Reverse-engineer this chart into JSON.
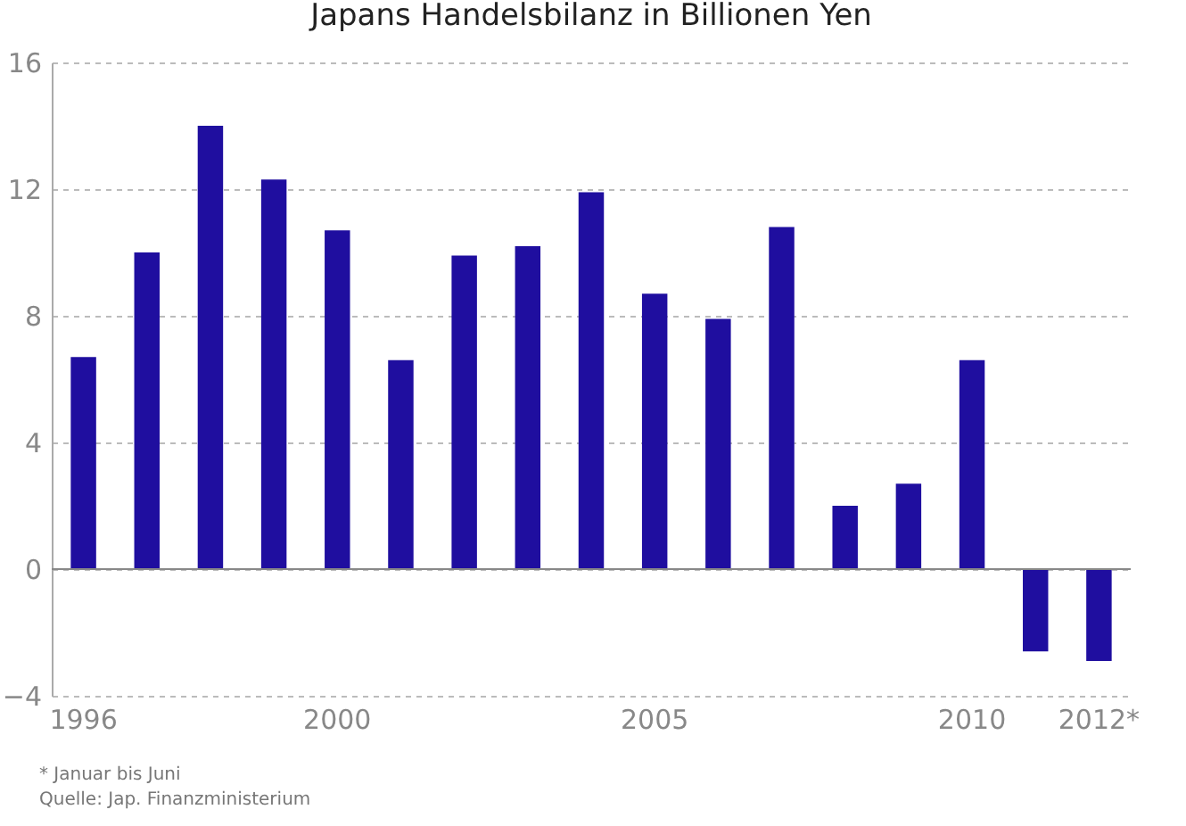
{
  "chart_data": {
    "type": "bar",
    "title": "Japans Handelsbilanz in Billionen Yen",
    "categories": [
      "1996",
      null,
      null,
      null,
      "2000",
      null,
      null,
      null,
      null,
      "2005",
      null,
      null,
      null,
      null,
      "2010",
      null,
      "2012*"
    ],
    "values": [
      6.7,
      10.0,
      14.0,
      12.3,
      10.7,
      6.6,
      9.9,
      10.2,
      11.9,
      8.7,
      7.9,
      10.8,
      2.0,
      2.7,
      6.6,
      -2.6,
      -2.9
    ],
    "color": "#1f0e9f",
    "ylim": [
      -4,
      16
    ],
    "yticks": [
      -4,
      0,
      4,
      8,
      12,
      16
    ],
    "grid": "y",
    "annotations": [
      "* Januar bis Juni",
      "Quelle: Jap. Finanzministerium"
    ]
  }
}
